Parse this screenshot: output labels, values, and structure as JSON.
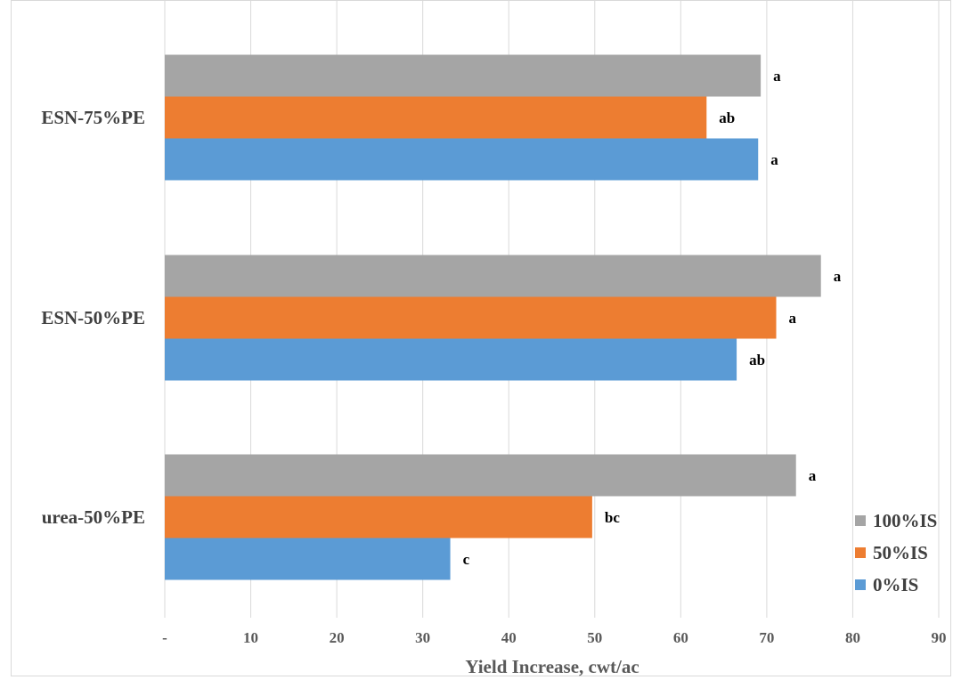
{
  "chart_data": {
    "type": "bar",
    "orientation": "horizontal",
    "categories": [
      "urea-50%PE",
      "ESN-50%PE",
      "ESN-75%PE"
    ],
    "series": [
      {
        "name": "0%IS",
        "color": "#5b9bd5",
        "values": [
          33.2,
          66.5,
          69.0
        ],
        "labels": [
          "c",
          "ab",
          "a"
        ]
      },
      {
        "name": "50%IS",
        "color": "#ed7d31",
        "values": [
          49.7,
          71.1,
          63.0
        ],
        "labels": [
          "bc",
          "a",
          "ab"
        ]
      },
      {
        "name": "100%IS",
        "color": "#a5a5a5",
        "values": [
          73.4,
          76.3,
          69.3
        ],
        "labels": [
          "a",
          "a",
          "a"
        ]
      }
    ],
    "xlabel": "Yield Increase, cwt/ac",
    "xlim": [
      0,
      90
    ],
    "xticks": [
      0,
      10,
      20,
      30,
      40,
      50,
      60,
      70,
      80,
      90
    ],
    "xtick_labels": [
      "-",
      "10",
      "20",
      "30",
      "40",
      "50",
      "60",
      "70",
      "80",
      "90"
    ],
    "grid": "vertical",
    "legend_position": "bottom-right"
  }
}
